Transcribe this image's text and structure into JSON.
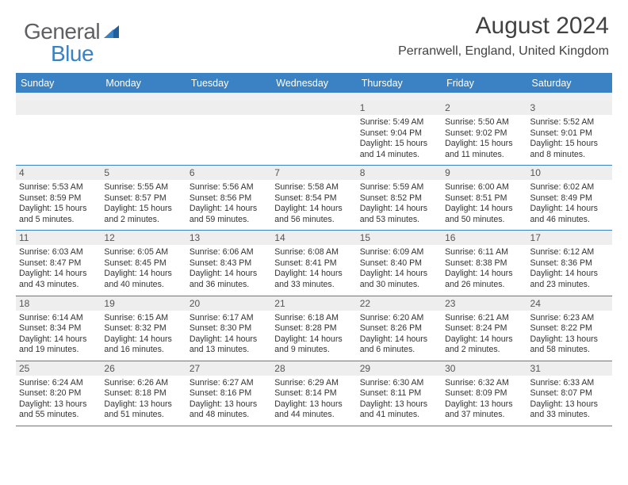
{
  "logo": {
    "text1": "General",
    "text2": "Blue",
    "color1": "#5f6062",
    "color2": "#3b82c4"
  },
  "title": "August 2024",
  "subtitle": "Perranwell, England, United Kingdom",
  "accent_color": "#3b82c4",
  "header_bg": "#3b82c4",
  "header_text_color": "#ffffff",
  "daynum_bg": "#eeeeee",
  "daynames": [
    "Sunday",
    "Monday",
    "Tuesday",
    "Wednesday",
    "Thursday",
    "Friday",
    "Saturday"
  ],
  "weeks": [
    [
      null,
      null,
      null,
      null,
      {
        "n": "1",
        "sunrise": "Sunrise: 5:49 AM",
        "sunset": "Sunset: 9:04 PM",
        "d1": "Daylight: 15 hours",
        "d2": "and 14 minutes."
      },
      {
        "n": "2",
        "sunrise": "Sunrise: 5:50 AM",
        "sunset": "Sunset: 9:02 PM",
        "d1": "Daylight: 15 hours",
        "d2": "and 11 minutes."
      },
      {
        "n": "3",
        "sunrise": "Sunrise: 5:52 AM",
        "sunset": "Sunset: 9:01 PM",
        "d1": "Daylight: 15 hours",
        "d2": "and 8 minutes."
      }
    ],
    [
      {
        "n": "4",
        "sunrise": "Sunrise: 5:53 AM",
        "sunset": "Sunset: 8:59 PM",
        "d1": "Daylight: 15 hours",
        "d2": "and 5 minutes."
      },
      {
        "n": "5",
        "sunrise": "Sunrise: 5:55 AM",
        "sunset": "Sunset: 8:57 PM",
        "d1": "Daylight: 15 hours",
        "d2": "and 2 minutes."
      },
      {
        "n": "6",
        "sunrise": "Sunrise: 5:56 AM",
        "sunset": "Sunset: 8:56 PM",
        "d1": "Daylight: 14 hours",
        "d2": "and 59 minutes."
      },
      {
        "n": "7",
        "sunrise": "Sunrise: 5:58 AM",
        "sunset": "Sunset: 8:54 PM",
        "d1": "Daylight: 14 hours",
        "d2": "and 56 minutes."
      },
      {
        "n": "8",
        "sunrise": "Sunrise: 5:59 AM",
        "sunset": "Sunset: 8:52 PM",
        "d1": "Daylight: 14 hours",
        "d2": "and 53 minutes."
      },
      {
        "n": "9",
        "sunrise": "Sunrise: 6:00 AM",
        "sunset": "Sunset: 8:51 PM",
        "d1": "Daylight: 14 hours",
        "d2": "and 50 minutes."
      },
      {
        "n": "10",
        "sunrise": "Sunrise: 6:02 AM",
        "sunset": "Sunset: 8:49 PM",
        "d1": "Daylight: 14 hours",
        "d2": "and 46 minutes."
      }
    ],
    [
      {
        "n": "11",
        "sunrise": "Sunrise: 6:03 AM",
        "sunset": "Sunset: 8:47 PM",
        "d1": "Daylight: 14 hours",
        "d2": "and 43 minutes."
      },
      {
        "n": "12",
        "sunrise": "Sunrise: 6:05 AM",
        "sunset": "Sunset: 8:45 PM",
        "d1": "Daylight: 14 hours",
        "d2": "and 40 minutes."
      },
      {
        "n": "13",
        "sunrise": "Sunrise: 6:06 AM",
        "sunset": "Sunset: 8:43 PM",
        "d1": "Daylight: 14 hours",
        "d2": "and 36 minutes."
      },
      {
        "n": "14",
        "sunrise": "Sunrise: 6:08 AM",
        "sunset": "Sunset: 8:41 PM",
        "d1": "Daylight: 14 hours",
        "d2": "and 33 minutes."
      },
      {
        "n": "15",
        "sunrise": "Sunrise: 6:09 AM",
        "sunset": "Sunset: 8:40 PM",
        "d1": "Daylight: 14 hours",
        "d2": "and 30 minutes."
      },
      {
        "n": "16",
        "sunrise": "Sunrise: 6:11 AM",
        "sunset": "Sunset: 8:38 PM",
        "d1": "Daylight: 14 hours",
        "d2": "and 26 minutes."
      },
      {
        "n": "17",
        "sunrise": "Sunrise: 6:12 AM",
        "sunset": "Sunset: 8:36 PM",
        "d1": "Daylight: 14 hours",
        "d2": "and 23 minutes."
      }
    ],
    [
      {
        "n": "18",
        "sunrise": "Sunrise: 6:14 AM",
        "sunset": "Sunset: 8:34 PM",
        "d1": "Daylight: 14 hours",
        "d2": "and 19 minutes."
      },
      {
        "n": "19",
        "sunrise": "Sunrise: 6:15 AM",
        "sunset": "Sunset: 8:32 PM",
        "d1": "Daylight: 14 hours",
        "d2": "and 16 minutes."
      },
      {
        "n": "20",
        "sunrise": "Sunrise: 6:17 AM",
        "sunset": "Sunset: 8:30 PM",
        "d1": "Daylight: 14 hours",
        "d2": "and 13 minutes."
      },
      {
        "n": "21",
        "sunrise": "Sunrise: 6:18 AM",
        "sunset": "Sunset: 8:28 PM",
        "d1": "Daylight: 14 hours",
        "d2": "and 9 minutes."
      },
      {
        "n": "22",
        "sunrise": "Sunrise: 6:20 AM",
        "sunset": "Sunset: 8:26 PM",
        "d1": "Daylight: 14 hours",
        "d2": "and 6 minutes."
      },
      {
        "n": "23",
        "sunrise": "Sunrise: 6:21 AM",
        "sunset": "Sunset: 8:24 PM",
        "d1": "Daylight: 14 hours",
        "d2": "and 2 minutes."
      },
      {
        "n": "24",
        "sunrise": "Sunrise: 6:23 AM",
        "sunset": "Sunset: 8:22 PM",
        "d1": "Daylight: 13 hours",
        "d2": "and 58 minutes."
      }
    ],
    [
      {
        "n": "25",
        "sunrise": "Sunrise: 6:24 AM",
        "sunset": "Sunset: 8:20 PM",
        "d1": "Daylight: 13 hours",
        "d2": "and 55 minutes."
      },
      {
        "n": "26",
        "sunrise": "Sunrise: 6:26 AM",
        "sunset": "Sunset: 8:18 PM",
        "d1": "Daylight: 13 hours",
        "d2": "and 51 minutes."
      },
      {
        "n": "27",
        "sunrise": "Sunrise: 6:27 AM",
        "sunset": "Sunset: 8:16 PM",
        "d1": "Daylight: 13 hours",
        "d2": "and 48 minutes."
      },
      {
        "n": "28",
        "sunrise": "Sunrise: 6:29 AM",
        "sunset": "Sunset: 8:14 PM",
        "d1": "Daylight: 13 hours",
        "d2": "and 44 minutes."
      },
      {
        "n": "29",
        "sunrise": "Sunrise: 6:30 AM",
        "sunset": "Sunset: 8:11 PM",
        "d1": "Daylight: 13 hours",
        "d2": "and 41 minutes."
      },
      {
        "n": "30",
        "sunrise": "Sunrise: 6:32 AM",
        "sunset": "Sunset: 8:09 PM",
        "d1": "Daylight: 13 hours",
        "d2": "and 37 minutes."
      },
      {
        "n": "31",
        "sunrise": "Sunrise: 6:33 AM",
        "sunset": "Sunset: 8:07 PM",
        "d1": "Daylight: 13 hours",
        "d2": "and 33 minutes."
      }
    ]
  ]
}
